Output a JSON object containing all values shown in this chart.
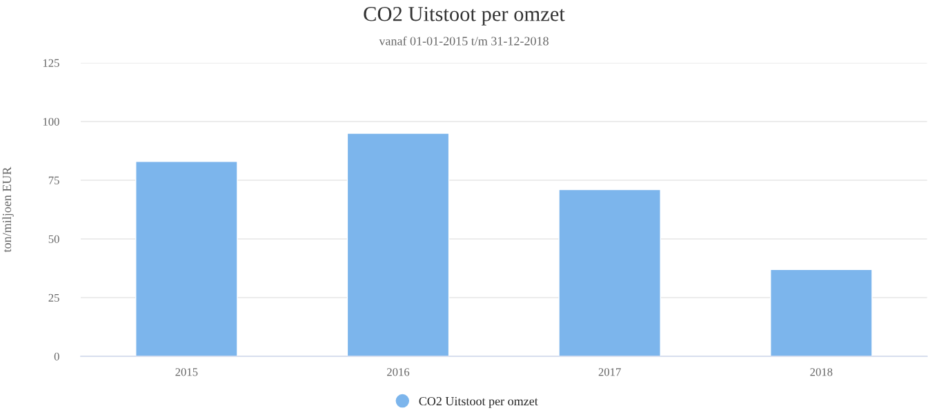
{
  "chart_data": {
    "type": "bar",
    "title": "CO2 Uitstoot per omzet",
    "subtitle": "vanaf 01-01-2015 t/m 31-12-2018",
    "ylabel": "ton/miljoen EUR",
    "categories": [
      "2015",
      "2016",
      "2017",
      "2018"
    ],
    "series": [
      {
        "name": "CO2 Uitstoot per omzet",
        "color": "#7cb5ec",
        "values": [
          83,
          95,
          71,
          37
        ]
      }
    ],
    "ylim": [
      0,
      125
    ],
    "yticks": [
      0,
      25,
      50,
      75,
      100,
      125
    ],
    "grid": "y",
    "legend": "bottom"
  }
}
